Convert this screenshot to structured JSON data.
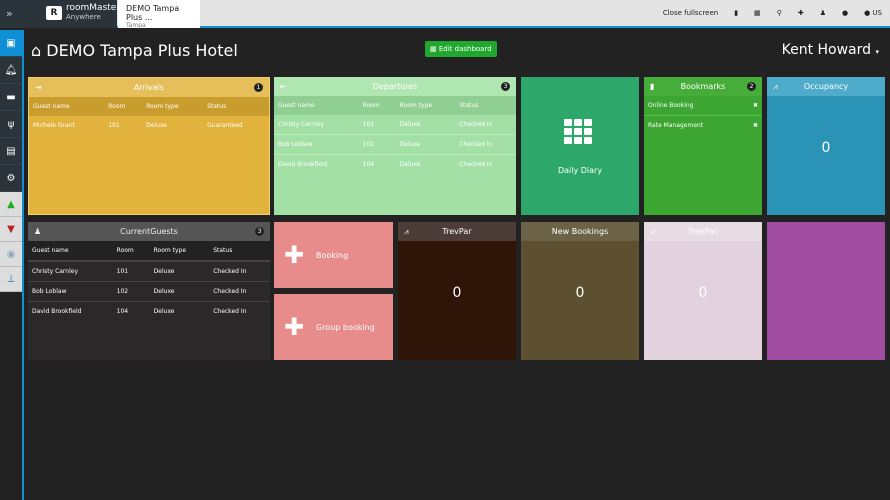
{
  "topbar": {
    "logo_line1": "roomMaster",
    "logo_line2": "Anywhere",
    "logo_mark": "R",
    "tab_title": "DEMO Tampa Plus ...",
    "tab_subtitle": "Tampa",
    "close_fullscreen": "Close fullscreen",
    "language": "US"
  },
  "sidebar": {
    "items": [
      "calendar-icon",
      "bell-icon",
      "bed-icon",
      "cutlery-icon",
      "briefcase-icon",
      "gear-icon",
      "thumbs-up-icon",
      "thumbs-down-icon",
      "circle-arrow-icon",
      "pin-icon"
    ]
  },
  "header": {
    "title": "DEMO Tampa Plus Hotel",
    "edit_dashboard": "Edit dashboard",
    "user": "Kent Howard"
  },
  "columns": [
    "Guest name",
    "Room",
    "Room type",
    "Status"
  ],
  "arrivals": {
    "title": "Arrivals",
    "count": "1",
    "rows": [
      [
        "Michele Grant",
        "101",
        "Deluxe",
        "Guaranteed"
      ]
    ]
  },
  "departures": {
    "title": "Departures",
    "count": "3",
    "rows": [
      [
        "Christy Carnley",
        "101",
        "Deluxe",
        "Checked In"
      ],
      [
        "Bob Loblaw",
        "102",
        "Deluxe",
        "Checked In"
      ],
      [
        "David Brookfield",
        "104",
        "Deluxe",
        "Checked In"
      ]
    ]
  },
  "daily_diary": {
    "label": "Daily Diary"
  },
  "bookmarks": {
    "title": "Bookmarks",
    "count": "2",
    "items": [
      "Online Booking",
      "Rate Management"
    ]
  },
  "occupancy": {
    "title": "Occupancy",
    "value": "0"
  },
  "current_guests": {
    "title": "CurrentGuests",
    "count": "3",
    "rows": [
      [
        "Christy Carnley",
        "101",
        "Deluxe",
        "Checked In"
      ],
      [
        "Bob Loblaw",
        "102",
        "Deluxe",
        "Checked In"
      ],
      [
        "David Brookfield",
        "104",
        "Deluxe",
        "Checked In"
      ]
    ]
  },
  "booking": {
    "label": "Booking"
  },
  "group_booking": {
    "label": "Group booking"
  },
  "trevpar": {
    "title": "TrevPar",
    "value": "0"
  },
  "new_bookings": {
    "title": "New Bookings",
    "value": "0"
  },
  "trevpac": {
    "title": "TrevPac",
    "value": "0"
  }
}
